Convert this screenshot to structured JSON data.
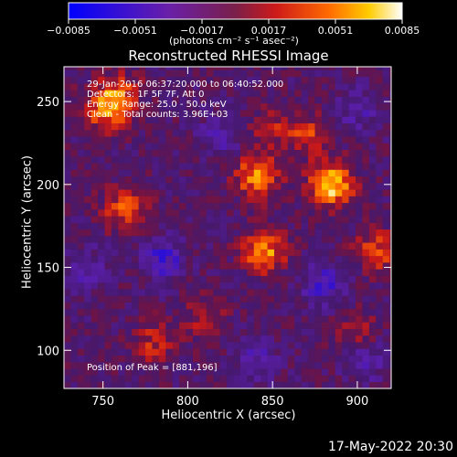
{
  "colorbar": {
    "tick_labels": [
      "−0.0085",
      "−0.0051",
      "−0.0017",
      "0.0017",
      "0.0051",
      "0.0085"
    ],
    "unit_label": "(photons cm⁻² s⁻¹ asec⁻²)",
    "range": [
      -0.0085,
      0.0085
    ],
    "colors": [
      "#0000ff",
      "#6a1fa8",
      "#cc1a1a",
      "#ff6a00",
      "#ffcc00",
      "#ffffff"
    ]
  },
  "chart_data": {
    "type": "heatmap",
    "title": "Reconstructed RHESSI Image",
    "xlabel": "Heliocentric X (arcsec)",
    "ylabel": "Heliocentric Y (arcsec)",
    "xlim": [
      727,
      920
    ],
    "ylim": [
      77,
      271
    ],
    "x_ticks": [
      750,
      800,
      850,
      900
    ],
    "y_ticks": [
      100,
      150,
      200,
      250
    ],
    "peak": [
      881,
      196
    ],
    "sources": [
      {
        "x": 885,
        "y": 200,
        "peak": 0.0085
      },
      {
        "x": 841,
        "y": 205,
        "peak": 0.0065
      },
      {
        "x": 845,
        "y": 160,
        "peak": 0.0065
      },
      {
        "x": 752,
        "y": 245,
        "peak": 0.006
      },
      {
        "x": 763,
        "y": 185,
        "peak": 0.005
      },
      {
        "x": 872,
        "y": 230,
        "peak": 0.004
      },
      {
        "x": 912,
        "y": 160,
        "peak": 0.0045
      },
      {
        "x": 780,
        "y": 105,
        "peak": 0.0035
      },
      {
        "x": 810,
        "y": 120,
        "peak": 0.003
      },
      {
        "x": 900,
        "y": 110,
        "peak": 0.003
      },
      {
        "x": 760,
        "y": 255,
        "peak": 0.004
      },
      {
        "x": 850,
        "y": 235,
        "peak": 0.003
      },
      {
        "x": 785,
        "y": 155,
        "peak": -0.0045
      },
      {
        "x": 880,
        "y": 140,
        "peak": -0.004
      },
      {
        "x": 900,
        "y": 245,
        "peak": -0.003
      },
      {
        "x": 820,
        "y": 230,
        "peak": -0.003
      },
      {
        "x": 840,
        "y": 95,
        "peak": -0.003
      },
      {
        "x": 740,
        "y": 150,
        "peak": -0.003
      },
      {
        "x": 905,
        "y": 95,
        "peak": -0.0035
      }
    ],
    "annotations": {
      "time": "29-Jan-2016 06:37:20.000 to 06:40:52.000",
      "detectors": "Detectors: 1F 5F 7F, Att 0",
      "energy": "Energy Range: 25.0 - 50.0 keV",
      "clean": "Clean  - Total counts: 3.96E+03",
      "peak_text": "Position of Peak = [881,196]"
    }
  },
  "footer": {
    "date": "17-May-2022 20:30"
  }
}
